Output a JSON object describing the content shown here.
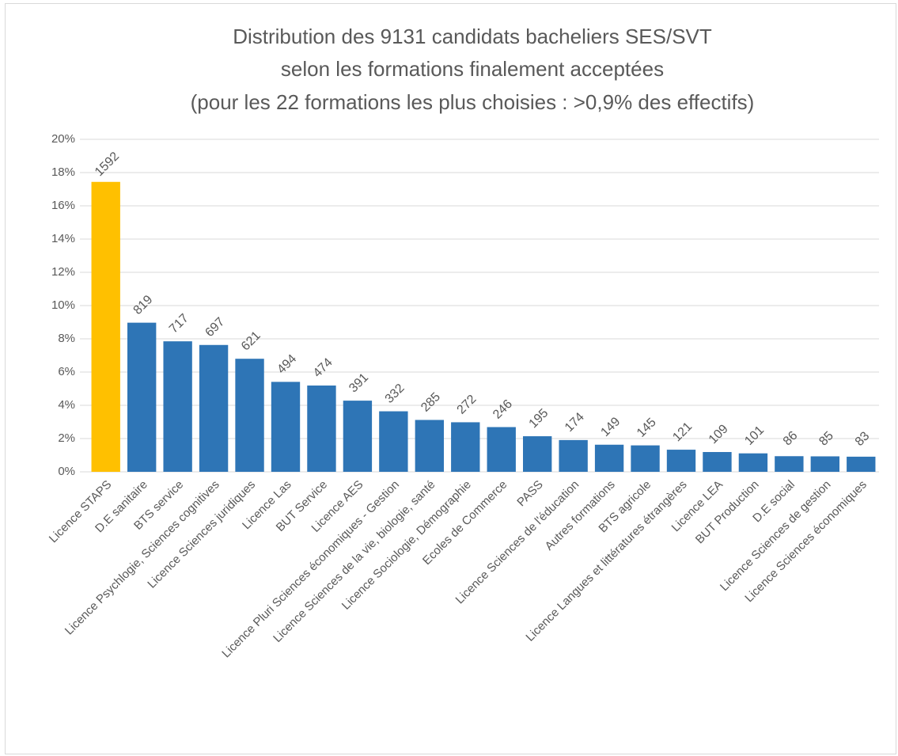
{
  "chart_data": {
    "type": "bar",
    "title": [
      "Distribution des 9131 candidats bacheliers SES/SVT",
      "selon les formations finalement acceptées",
      "(pour les 22 formations les plus choisies : >0,9% des effectifs)"
    ],
    "categories": [
      "Licence STAPS",
      "D.E sanitaire",
      "BTS service",
      "Licence Psychlogie, Sciences cognitives",
      "Licence Sciences juridiques",
      "Licence Las",
      "BUT Service",
      "Licence AES",
      "Licence Pluri Sciences économiques - Gestion",
      "Licence Sciences de la vie, biologie, santé",
      "Licence Sociologie, Démographie",
      "Ecoles de Commerce",
      "PASS",
      "Licence Sciences de l'éducation",
      "Autres formations",
      "BTS agricole",
      "Licence Langues et littératures étrangères",
      "Licence LEA",
      "BUT Production",
      "D.E social",
      "Licence Sciences de gestion",
      "Licence Sciences économiques"
    ],
    "values": [
      17.44,
      8.97,
      7.85,
      7.63,
      6.8,
      5.41,
      5.19,
      4.28,
      3.64,
      3.12,
      2.98,
      2.69,
      2.14,
      1.91,
      1.63,
      1.59,
      1.33,
      1.19,
      1.11,
      0.94,
      0.93,
      0.91
    ],
    "counts": [
      1592,
      819,
      717,
      697,
      621,
      494,
      474,
      391,
      332,
      285,
      272,
      246,
      195,
      174,
      149,
      145,
      121,
      109,
      101,
      86,
      85,
      83
    ],
    "colors": [
      "#ffc000",
      "#2e75b6",
      "#2e75b6",
      "#2e75b6",
      "#2e75b6",
      "#2e75b6",
      "#2e75b6",
      "#2e75b6",
      "#2e75b6",
      "#2e75b6",
      "#2e75b6",
      "#2e75b6",
      "#2e75b6",
      "#2e75b6",
      "#2e75b6",
      "#2e75b6",
      "#2e75b6",
      "#2e75b6",
      "#2e75b6",
      "#2e75b6",
      "#2e75b6",
      "#2e75b6"
    ],
    "ylim": [
      0,
      20
    ],
    "yticks": [
      {
        "value": 0,
        "label": "0%"
      },
      {
        "value": 2,
        "label": "2%"
      },
      {
        "value": 4,
        "label": "4%"
      },
      {
        "value": 6,
        "label": "6%"
      },
      {
        "value": 8,
        "label": "8%"
      },
      {
        "value": 10,
        "label": "10%"
      },
      {
        "value": 12,
        "label": "12%"
      },
      {
        "value": 14,
        "label": "14%"
      },
      {
        "value": 16,
        "label": "16%"
      },
      {
        "value": 18,
        "label": "18%"
      },
      {
        "value": 20,
        "label": "20%"
      }
    ],
    "grid": true
  }
}
